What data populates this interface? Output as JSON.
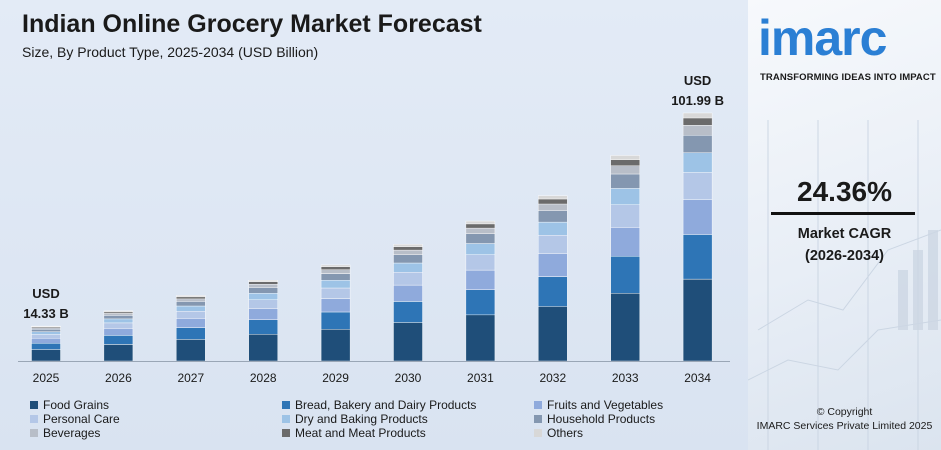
{
  "header": {
    "title": "Indian Online Grocery Market Forecast",
    "subtitle": "Size, By Product Type, 2025-2034 (USD Billion)"
  },
  "chart_data": {
    "type": "bar",
    "stacked": true,
    "title": "Indian Online Grocery Market Forecast",
    "subtitle": "Size, By Product Type, 2025-2034 (USD Billion)",
    "xlabel": "",
    "ylabel": "",
    "ylim": [
      0,
      110
    ],
    "grid": false,
    "legend_position": "bottom",
    "categories": [
      "2025",
      "2026",
      "2027",
      "2028",
      "2029",
      "2030",
      "2031",
      "2032",
      "2033",
      "2034"
    ],
    "totals": [
      14.33,
      20.62,
      26.92,
      33.22,
      39.52,
      48.0,
      57.5,
      68.0,
      84.5,
      101.99
    ],
    "series": [
      {
        "name": "Food Grains",
        "color": "#1f4e79",
        "values": [
          4.73,
          6.8,
          8.88,
          10.96,
          13.04,
          15.84,
          18.98,
          22.44,
          27.89,
          33.66
        ]
      },
      {
        "name": "Bread, Bakery and Dairy Products",
        "color": "#2e75b6",
        "values": [
          2.58,
          3.71,
          4.85,
          5.98,
          7.11,
          8.64,
          10.35,
          12.24,
          15.21,
          18.36
        ]
      },
      {
        "name": "Fruits and Vegetables",
        "color": "#8faadc",
        "values": [
          2.01,
          2.89,
          3.77,
          4.65,
          5.53,
          6.72,
          8.05,
          9.52,
          11.83,
          14.28
        ]
      },
      {
        "name": "Personal Care",
        "color": "#b4c7e7",
        "values": [
          1.58,
          2.27,
          2.96,
          3.65,
          4.35,
          5.28,
          6.33,
          7.48,
          9.3,
          11.22
        ]
      },
      {
        "name": "Dry and Baking Products",
        "color": "#9dc3e6",
        "values": [
          1.15,
          1.65,
          2.15,
          2.66,
          3.16,
          3.84,
          4.6,
          5.44,
          6.76,
          8.16
        ]
      },
      {
        "name": "Household Products",
        "color": "#8497b0",
        "values": [
          1.0,
          1.44,
          1.88,
          2.33,
          2.77,
          3.36,
          4.03,
          4.76,
          5.92,
          7.14
        ]
      },
      {
        "name": "Beverages",
        "color": "#b8bec8",
        "values": [
          0.57,
          0.82,
          1.08,
          1.33,
          1.58,
          1.92,
          2.3,
          2.72,
          3.38,
          4.08
        ]
      },
      {
        "name": "Meat and Meat Products",
        "color": "#6b6b6b",
        "values": [
          0.43,
          0.62,
          0.81,
          1.0,
          1.19,
          1.44,
          1.73,
          2.04,
          2.54,
          3.06
        ]
      },
      {
        "name": "Others",
        "color": "#d8d8d8",
        "values": [
          0.29,
          0.41,
          0.54,
          0.66,
          0.79,
          0.96,
          1.15,
          1.36,
          1.69,
          2.04
        ]
      }
    ],
    "annotations": [
      {
        "category": "2025",
        "line1": "USD",
        "line2": "14.33 B"
      },
      {
        "category": "2034",
        "line1": "USD",
        "line2": "101.99 B"
      }
    ]
  },
  "legend": [
    {
      "label": "Food Grains",
      "color": "#1f4e79"
    },
    {
      "label": "Bread, Bakery and Dairy Products",
      "color": "#2e75b6"
    },
    {
      "label": "Fruits and Vegetables",
      "color": "#8faadc"
    },
    {
      "label": "Personal Care",
      "color": "#b4c7e7"
    },
    {
      "label": "Dry and Baking Products",
      "color": "#9dc3e6"
    },
    {
      "label": "Household Products",
      "color": "#8497b0"
    },
    {
      "label": "Beverages",
      "color": "#b8bec8"
    },
    {
      "label": "Meat and Meat Products",
      "color": "#6b6b6b"
    },
    {
      "label": "Others",
      "color": "#d8d8d8"
    }
  ],
  "brand": {
    "logo": "imarc",
    "tagline": "TRANSFORMING IDEAS INTO IMPACT",
    "color": "#2b7fd4"
  },
  "cagr": {
    "value": "24.36%",
    "label": "Market CAGR",
    "period": "(2026-2034)"
  },
  "footer": {
    "copyright": "© Copyright",
    "company": "IMARC Services Private Limited 2025"
  }
}
